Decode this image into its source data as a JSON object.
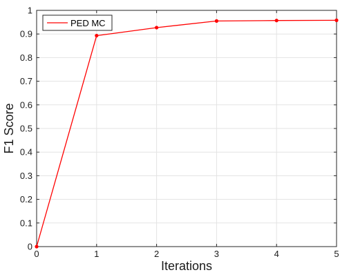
{
  "chart_data": {
    "type": "line",
    "title": "",
    "xlabel": "Iterations",
    "ylabel": "F1 Score",
    "xlim": [
      0,
      5
    ],
    "ylim": [
      0,
      1
    ],
    "xticks": [
      "0",
      "1",
      "2",
      "3",
      "4",
      "5"
    ],
    "yticks": [
      "0",
      "0.1",
      "0.2",
      "0.3",
      "0.4",
      "0.5",
      "0.6",
      "0.7",
      "0.8",
      "0.9",
      "1"
    ],
    "grid": true,
    "legend_position": "top-left",
    "series": [
      {
        "name": "PED MC",
        "color": "#ff0000",
        "x": [
          0,
          1,
          2,
          3,
          4,
          5
        ],
        "y": [
          0.0,
          0.893,
          0.927,
          0.955,
          0.957,
          0.958
        ]
      }
    ]
  }
}
